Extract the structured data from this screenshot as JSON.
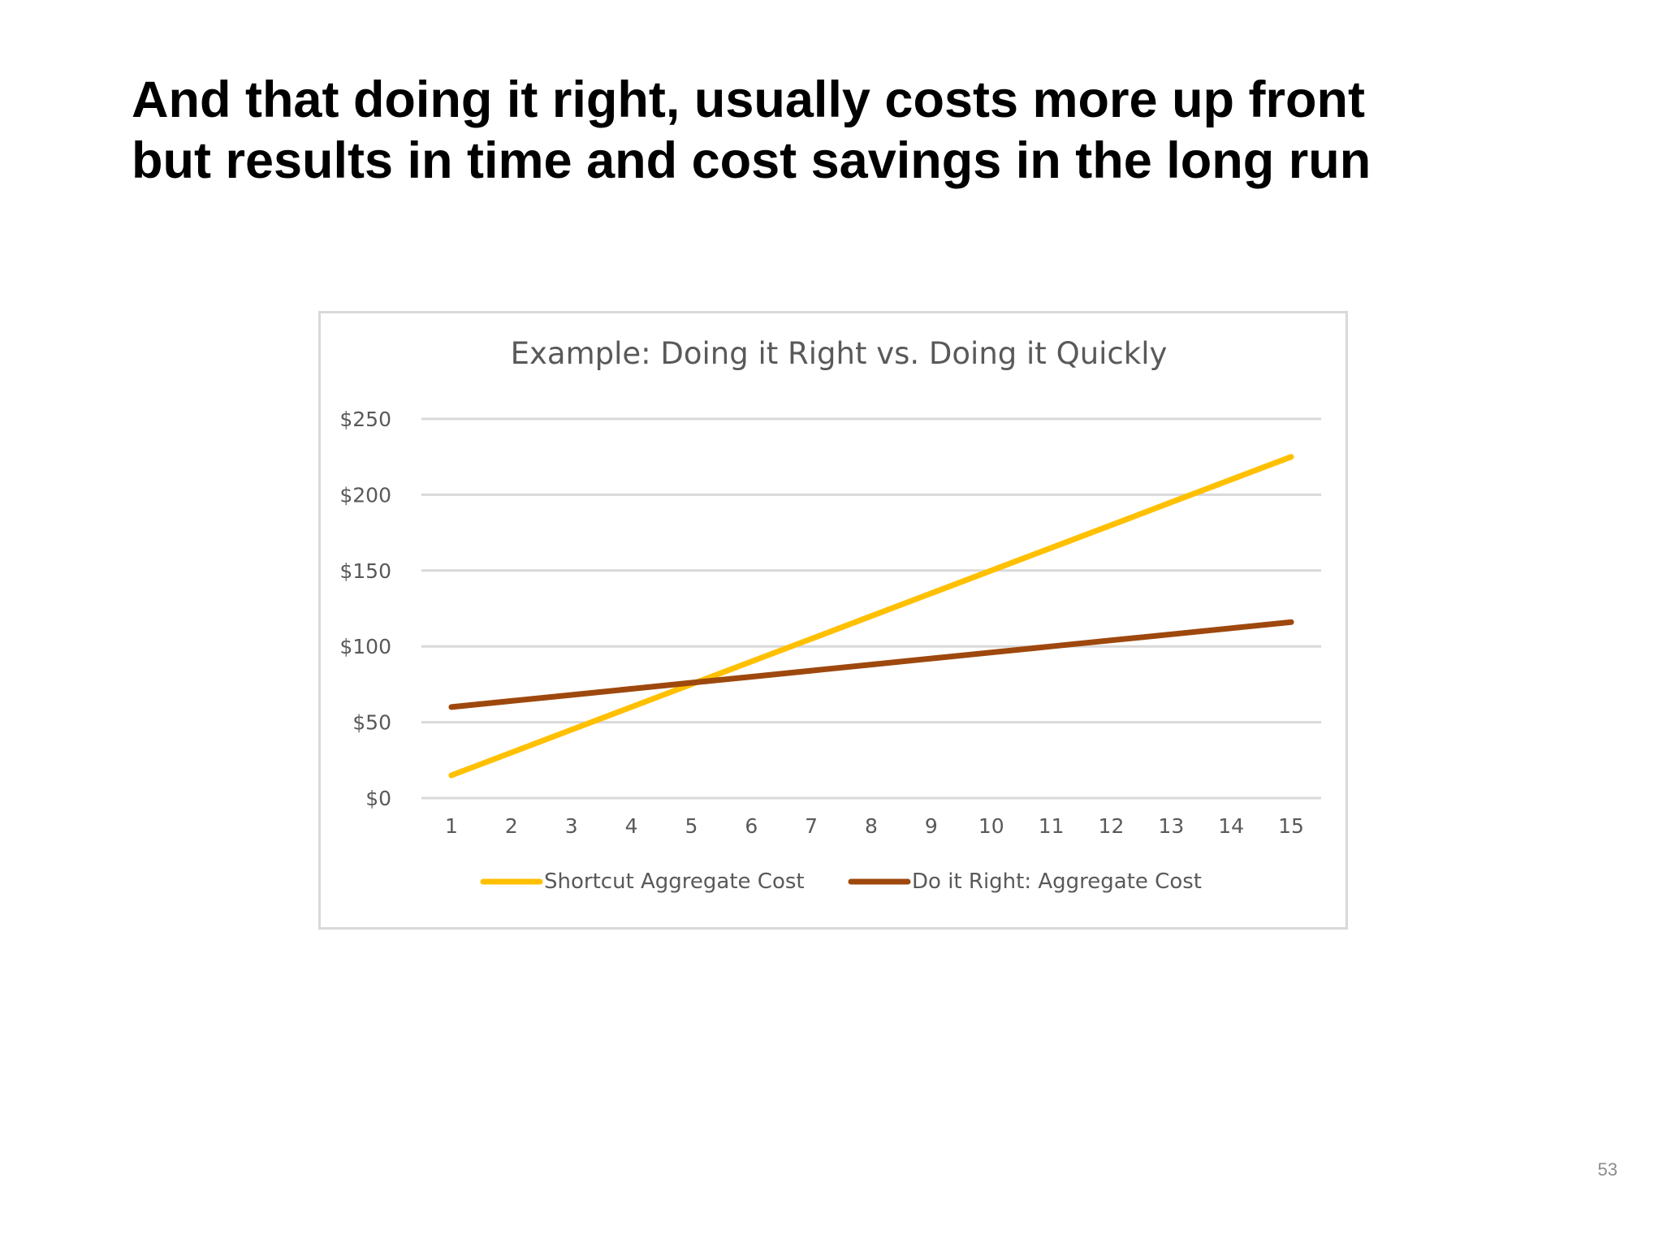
{
  "slide": {
    "title_line1": "And that doing it right, usually costs more up front",
    "title_line2": "but results in time and cost savings in the long run",
    "page_number": "53"
  },
  "colors": {
    "shortcut": "#FFC000",
    "do_it_right": "#9E480E",
    "gridline": "#d9d9d9",
    "axis_text": "#595959",
    "frame": "#d9d9d9"
  },
  "chart_data": {
    "type": "line",
    "title": "Example: Doing it Right  vs. Doing it Quickly",
    "xlabel": "",
    "ylabel": "",
    "x": [
      1,
      2,
      3,
      4,
      5,
      6,
      7,
      8,
      9,
      10,
      11,
      12,
      13,
      14,
      15
    ],
    "y_ticks": [
      "$0",
      "$50",
      "$100",
      "$150",
      "$200",
      "$250"
    ],
    "ylim": [
      0,
      250
    ],
    "grid": true,
    "legend_position": "bottom",
    "series": [
      {
        "name": "Shortcut Aggregate Cost",
        "color": "#FFC000",
        "values": [
          15,
          30,
          45,
          60,
          75,
          90,
          105,
          120,
          135,
          150,
          165,
          180,
          195,
          210,
          225
        ]
      },
      {
        "name": "Do it Right: Aggregate Cost",
        "color": "#9E480E",
        "values": [
          60,
          64,
          68,
          72,
          76,
          80,
          84,
          88,
          92,
          96,
          100,
          104,
          108,
          112,
          116
        ]
      }
    ]
  }
}
